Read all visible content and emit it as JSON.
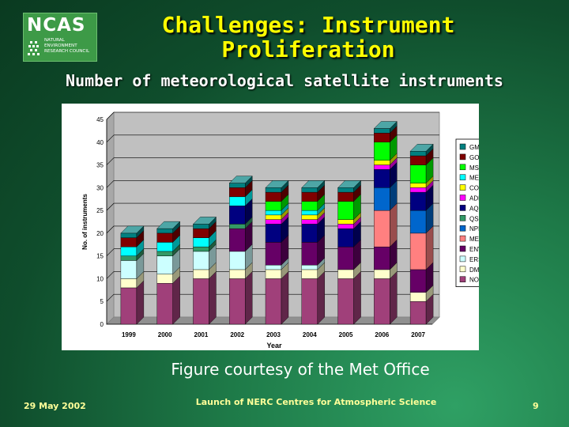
{
  "logo": {
    "name": "NCAS",
    "org_lines": [
      "NATURAL",
      "ENVIRONMENT",
      "RESEARCH COUNCIL"
    ]
  },
  "slide": {
    "title_line1": "Challenges: Instrument",
    "title_line2": "Proliferation",
    "subtitle": "Number of meteorological satellite instruments",
    "courtesy": "Figure courtesy of the Met Office",
    "footer_date": "29 May 2002",
    "footer_center": "Launch of NERC Centres for Atmospheric Science",
    "page_number": "9"
  },
  "chart_data": {
    "type": "bar",
    "stacked": true,
    "three_d": true,
    "categories": [
      "1999",
      "2000",
      "2001",
      "2002",
      "2003",
      "2004",
      "2005",
      "2006",
      "2007"
    ],
    "xlabel": "Year",
    "ylabel": "No. of instruments",
    "ylim": [
      0,
      45
    ],
    "yticks": [
      0,
      5,
      10,
      15,
      20,
      25,
      30,
      35,
      40,
      45
    ],
    "grid": true,
    "legend_position": "right",
    "series": [
      {
        "name": "NOAA",
        "color": "#a0407a",
        "values": [
          8,
          9,
          10,
          10,
          10,
          10,
          10,
          10,
          5
        ]
      },
      {
        "name": "DMSP",
        "color": "#ffffcc",
        "values": [
          2,
          2,
          2,
          2,
          2,
          2,
          2,
          2,
          2
        ]
      },
      {
        "name": "ERS",
        "color": "#ccffff",
        "values": [
          4,
          4,
          4,
          4,
          1,
          1,
          0,
          0,
          0
        ]
      },
      {
        "name": "ENVISAT",
        "color": "#660066",
        "values": [
          0,
          0,
          0,
          5,
          5,
          5,
          5,
          5,
          5
        ]
      },
      {
        "name": "METOP",
        "color": "#ff8080",
        "values": [
          0,
          0,
          0,
          0,
          0,
          0,
          0,
          8,
          8
        ]
      },
      {
        "name": "NPP",
        "color": "#0066cc",
        "values": [
          0,
          0,
          0,
          0,
          0,
          0,
          0,
          5,
          5
        ]
      },
      {
        "name": "QSCAT",
        "color": "#339966",
        "values": [
          1,
          1,
          1,
          1,
          0,
          0,
          0,
          0,
          0
        ]
      },
      {
        "name": "AQUA",
        "color": "#000080",
        "values": [
          0,
          0,
          0,
          4,
          4,
          4,
          4,
          4,
          4
        ]
      },
      {
        "name": "ADEOS",
        "color": "#ff00ff",
        "values": [
          0,
          0,
          0,
          0,
          1,
          1,
          1,
          1,
          1
        ]
      },
      {
        "name": "CORIOLIS",
        "color": "#ffff00",
        "values": [
          0,
          0,
          0,
          0,
          1,
          1,
          1,
          1,
          1
        ]
      },
      {
        "name": "METEOSAT",
        "color": "#00ffff",
        "values": [
          2,
          2,
          2,
          2,
          1,
          1,
          0,
          0,
          0
        ]
      },
      {
        "name": "MSG",
        "color": "#00ff00",
        "values": [
          0,
          0,
          0,
          0,
          2,
          2,
          4,
          4,
          4
        ]
      },
      {
        "name": "GOES",
        "color": "#800000",
        "values": [
          2,
          2,
          2,
          2,
          2,
          2,
          2,
          2,
          2
        ]
      },
      {
        "name": "GMS",
        "color": "#008080",
        "values": [
          1,
          1,
          1,
          1,
          1,
          1,
          1,
          1,
          1
        ]
      }
    ]
  }
}
